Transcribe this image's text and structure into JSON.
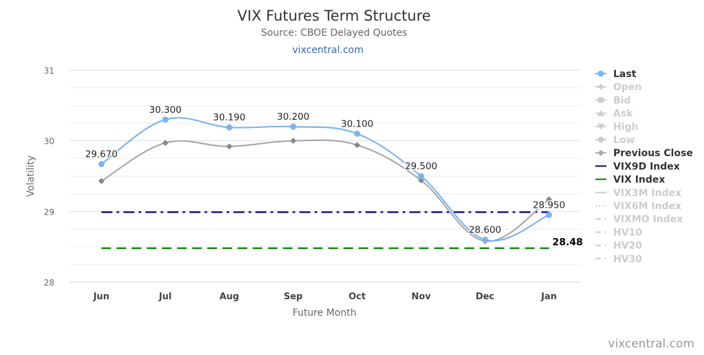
{
  "colors": {
    "last": "#7cb5ec",
    "previous_close": "#aaaaaa",
    "vix9d": "#000080",
    "vix": "#008000",
    "legend_active": "#333333",
    "legend_inactive": "#cccccc",
    "grid": "#e6e6e6",
    "axis_text": "#666666",
    "link": "#3366aa"
  },
  "chart_data": {
    "type": "line",
    "title": "VIX Futures Term Structure",
    "subtitle": "Source: CBOE Delayed Quotes",
    "link_text": "vixcentral.com",
    "credit": "vixcentral.com",
    "xlabel": "Future Month",
    "ylabel": "Volatility",
    "categories": [
      "Jun",
      "Jul",
      "Aug",
      "Sep",
      "Oct",
      "Nov",
      "Dec",
      "Jan"
    ],
    "ylim": [
      28,
      31
    ],
    "yticks": [
      28,
      29,
      30,
      31
    ],
    "grid": true,
    "legend_position": "right",
    "series": [
      {
        "name": "Last",
        "values": [
          29.67,
          30.3,
          30.19,
          30.2,
          30.1,
          29.5,
          28.6,
          28.95
        ],
        "labels": [
          "29.670",
          "30.300",
          "30.190",
          "30.200",
          "30.100",
          "29.500",
          "28.600",
          "28.950"
        ],
        "marker": "circle"
      },
      {
        "name": "Previous Close",
        "values": [
          29.43,
          29.97,
          29.92,
          30.0,
          29.94,
          29.44,
          28.58,
          29.17
        ],
        "marker": "diamond"
      },
      {
        "name": "VIX9D Index",
        "constant": 28.99,
        "dash": "dash-dot"
      },
      {
        "name": "VIX Index",
        "constant": 28.48,
        "dash": "dash",
        "end_label": "28.48"
      }
    ],
    "legend": [
      {
        "name": "Last",
        "symbol": "circle-line",
        "active": true
      },
      {
        "name": "Open",
        "symbol": "diamond-line",
        "active": false
      },
      {
        "name": "Bid",
        "symbol": "square-line",
        "active": false
      },
      {
        "name": "Ask",
        "symbol": "triangle-line",
        "active": false
      },
      {
        "name": "High",
        "symbol": "triangle-down-line",
        "active": false
      },
      {
        "name": "Low",
        "symbol": "circle-line",
        "active": false
      },
      {
        "name": "Previous Close",
        "symbol": "diamond-line",
        "active": true
      },
      {
        "name": "VIX9D Index",
        "symbol": "solid-line",
        "active": true
      },
      {
        "name": "VIX Index",
        "symbol": "solid-line",
        "active": true
      },
      {
        "name": "VIX3M Index",
        "symbol": "solid-line",
        "active": false
      },
      {
        "name": "VIX6M Index",
        "symbol": "dotted-line",
        "active": false
      },
      {
        "name": "VIXMO Index",
        "symbol": "dashed-line",
        "active": false
      },
      {
        "name": "HV10",
        "symbol": "dashed-line",
        "active": false
      },
      {
        "name": "HV20",
        "symbol": "dashed-line",
        "active": false
      },
      {
        "name": "HV30",
        "symbol": "dashed-line",
        "active": false
      }
    ]
  }
}
